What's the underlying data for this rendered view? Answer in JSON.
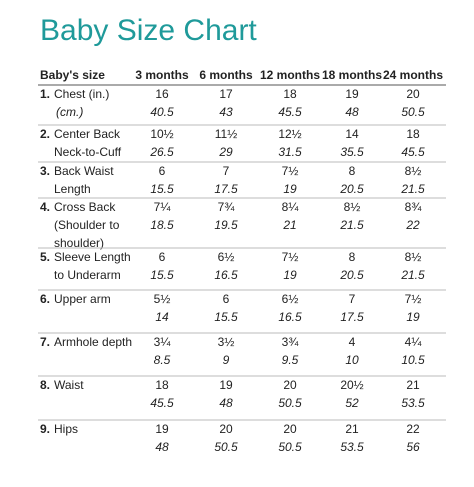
{
  "header": {
    "title": "Baby Size Chart"
  },
  "table": {
    "columns": [
      "Baby's size",
      "3 months",
      "6 months",
      "12 months",
      "18 months",
      "24 months"
    ],
    "rows": [
      {
        "number": "1.",
        "label": [
          "Chest (in.)",
          "(cm.)"
        ],
        "inches": [
          "16",
          "17",
          "18",
          "19",
          "20"
        ],
        "cm": [
          "40.5",
          "43",
          "45.5",
          "48",
          "50.5"
        ]
      },
      {
        "number": "2.",
        "label": [
          "Center Back",
          "Neck-to-Cuff"
        ],
        "inches": [
          "10½",
          "11½",
          "12½",
          "14",
          "18"
        ],
        "cm": [
          "26.5",
          "29",
          "31.5",
          "35.5",
          "45.5"
        ]
      },
      {
        "number": "3.",
        "label": [
          "Back Waist",
          "Length"
        ],
        "inches": [
          "6",
          "7",
          "7½",
          "8",
          "8½"
        ],
        "cm": [
          "15.5",
          "17.5",
          "19",
          "20.5",
          "21.5"
        ]
      },
      {
        "number": "4.",
        "label": [
          "Cross Back",
          "(Shoulder to",
          "shoulder)"
        ],
        "inches": [
          "7¼",
          "7¾",
          "8¼",
          "8½",
          "8¾"
        ],
        "cm": [
          "18.5",
          "19.5",
          "21",
          "21.5",
          "22"
        ]
      },
      {
        "number": "5.",
        "label": [
          "Sleeve Length",
          "to Underarm"
        ],
        "inches": [
          "6",
          "6½",
          "7½",
          "8",
          "8½"
        ],
        "cm": [
          "15.5",
          "16.5",
          "19",
          "20.5",
          "21.5"
        ]
      },
      {
        "number": "6.",
        "label": [
          "Upper arm"
        ],
        "inches": [
          "5½",
          "6",
          "6½",
          "7",
          "7½"
        ],
        "cm": [
          "14",
          "15.5",
          "16.5",
          "17.5",
          "19"
        ]
      },
      {
        "number": "7.",
        "label": [
          "Armhole depth"
        ],
        "inches": [
          "3¼",
          "3½",
          "3¾",
          "4",
          "4¼"
        ],
        "cm": [
          "8.5",
          "9",
          "9.5",
          "10",
          "10.5"
        ]
      },
      {
        "number": "8.",
        "label": [
          "Waist"
        ],
        "inches": [
          "18",
          "19",
          "20",
          "20½",
          "21"
        ],
        "cm": [
          "45.5",
          "48",
          "50.5",
          "52",
          "53.5"
        ]
      },
      {
        "number": "9.",
        "label": [
          "Hips"
        ],
        "inches": [
          "19",
          "20",
          "20",
          "21",
          "22"
        ],
        "cm": [
          "48",
          "50.5",
          "50.5",
          "53.5",
          "56"
        ]
      }
    ]
  }
}
